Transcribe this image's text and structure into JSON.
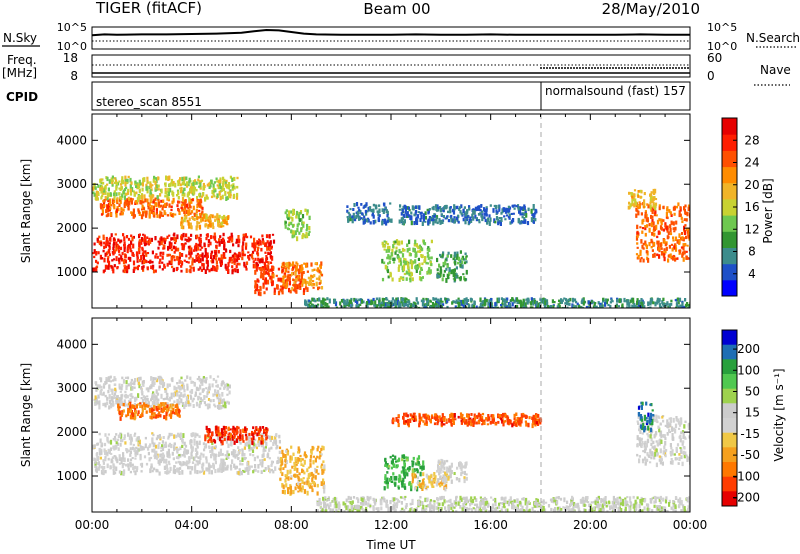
{
  "header": {
    "title": "TIGER (fitACF)",
    "beam": "Beam 00",
    "date": "28/May/2010"
  },
  "noise_panel": {
    "left_label": "N.Sky",
    "right_label": "N.Search",
    "left_ticks": [
      "10^5",
      "10^0"
    ],
    "right_ticks": [
      "10^5",
      "10^0"
    ],
    "sky_profile": [
      [
        0,
        3.2
      ],
      [
        0.5,
        3.4
      ],
      [
        1,
        3.3
      ],
      [
        2,
        3.4
      ],
      [
        3,
        3.4
      ],
      [
        4,
        3.5
      ],
      [
        5,
        3.6
      ],
      [
        6,
        3.8
      ],
      [
        6.5,
        4.2
      ],
      [
        7,
        4.5
      ],
      [
        7.5,
        4.4
      ],
      [
        8,
        4.0
      ],
      [
        8.5,
        3.6
      ],
      [
        9,
        3.4
      ],
      [
        10,
        3.3
      ],
      [
        11,
        3.3
      ],
      [
        12,
        3.3
      ],
      [
        13,
        3.4
      ],
      [
        14,
        3.3
      ],
      [
        15,
        3.3
      ],
      [
        16,
        3.4
      ],
      [
        17,
        3.3
      ],
      [
        18,
        3.3
      ],
      [
        19,
        3.3
      ],
      [
        20,
        3.3
      ],
      [
        21,
        3.3
      ],
      [
        22,
        3.4
      ],
      [
        23,
        3.3
      ],
      [
        24,
        3.3
      ]
    ]
  },
  "freq_panel": {
    "left_label": "Freq.",
    "left_unit": "[MHz]",
    "right_label": "Nave",
    "left_ticks": [
      "18",
      "8"
    ],
    "right_ticks": [
      "60",
      "0"
    ]
  },
  "cpid_panel": {
    "label": "CPID",
    "programs": [
      {
        "name": "stereo_scan",
        "id": "8551",
        "start": 0,
        "end": 18
      },
      {
        "name": "normalsound (fast)",
        "id": "157",
        "start": 18,
        "end": 24
      }
    ]
  },
  "colors": {
    "power": [
      "#0000ff",
      "#1e50c8",
      "#3c8c8c",
      "#329632",
      "#6ec850",
      "#c8d232",
      "#f0b428",
      "#ff8c00",
      "#ff5000",
      "#ff1e00",
      "#e60000"
    ],
    "velocity": [
      "#e60000",
      "#ff3c00",
      "#ff7800",
      "#f5a01e",
      "#f0c846",
      "#d2d2d2",
      "#cccccc",
      "#9ed24e",
      "#50c850",
      "#28a03c",
      "#1e6eb4",
      "#0000d2"
    ]
  },
  "chart_data": [
    {
      "type": "heatmap",
      "name": "power",
      "xlabel": "",
      "ylabel": "Slant Range [km]",
      "xlim": [
        0,
        24
      ],
      "ylim": [
        180,
        4600
      ],
      "yticks": [
        1000,
        2000,
        3000,
        4000
      ],
      "colorbar": {
        "label": "Power [dB]",
        "range": [
          0,
          32
        ],
        "ticks": [
          4,
          8,
          12,
          16,
          20,
          24,
          28
        ]
      },
      "regions": [
        {
          "t0": 0,
          "t1": 7.3,
          "r0": 1050,
          "r1": 1900,
          "value": 28
        },
        {
          "t0": 0.3,
          "t1": 4.5,
          "r0": 2300,
          "r1": 2700,
          "value": 24
        },
        {
          "t0": 0,
          "t1": 5.8,
          "r0": 2700,
          "r1": 3200,
          "value": 16
        },
        {
          "t0": 3.5,
          "t1": 5.5,
          "r0": 2050,
          "r1": 2350,
          "value": 20
        },
        {
          "t0": 6.5,
          "t1": 8.5,
          "r0": 550,
          "r1": 1150,
          "value": 26
        },
        {
          "t0": 7.6,
          "t1": 9.2,
          "r0": 650,
          "r1": 1250,
          "value": 22
        },
        {
          "t0": 7.7,
          "t1": 8.7,
          "r0": 1800,
          "r1": 2450,
          "value": 14
        },
        {
          "t0": 10.2,
          "t1": 12.0,
          "r0": 2150,
          "r1": 2600,
          "value": 6
        },
        {
          "t0": 11.6,
          "t1": 13.6,
          "r0": 850,
          "r1": 1750,
          "value": 14
        },
        {
          "t0": 12.3,
          "t1": 17.8,
          "r0": 2150,
          "r1": 2550,
          "value": 6
        },
        {
          "t0": 13.8,
          "t1": 15.0,
          "r0": 850,
          "r1": 1500,
          "value": 10
        },
        {
          "t0": 8.5,
          "t1": 24,
          "r0": 200,
          "r1": 430,
          "value": 8
        },
        {
          "t0": 21.8,
          "t1": 24,
          "r0": 1300,
          "r1": 2600,
          "value": 24
        },
        {
          "t0": 21.5,
          "t1": 22.6,
          "r0": 2500,
          "r1": 2900,
          "value": 18
        }
      ]
    },
    {
      "type": "heatmap",
      "name": "velocity",
      "xlabel": "Time UT",
      "ylabel": "Slant Range [km]",
      "xlim": [
        0,
        24
      ],
      "ylim": [
        180,
        4600
      ],
      "xticks": [
        "00:00",
        "04:00",
        "08:00",
        "12:00",
        "16:00",
        "20:00",
        "00:00"
      ],
      "yticks": [
        1000,
        2000,
        3000,
        4000
      ],
      "colorbar": {
        "label": "Velocity [m s⁻¹]",
        "range": [
          -250,
          250
        ],
        "ticks": [
          "200",
          "100",
          "50",
          "15",
          "-15",
          "-50",
          "-100",
          "-200"
        ]
      },
      "regions": [
        {
          "t0": 0,
          "t1": 7.5,
          "r0": 1100,
          "r1": 2000,
          "value": 0
        },
        {
          "t0": 0,
          "t1": 5.5,
          "r0": 2600,
          "r1": 3300,
          "value": 0
        },
        {
          "t0": 1.0,
          "t1": 3.5,
          "r0": 2350,
          "r1": 2700,
          "value": -150
        },
        {
          "t0": 4.5,
          "t1": 7.0,
          "r0": 1800,
          "r1": 2150,
          "value": -200
        },
        {
          "t0": 7.5,
          "t1": 9.3,
          "r0": 650,
          "r1": 1700,
          "value": -80
        },
        {
          "t0": 11.7,
          "t1": 13.3,
          "r0": 750,
          "r1": 1500,
          "value": 120
        },
        {
          "t0": 12.8,
          "t1": 14.2,
          "r0": 750,
          "r1": 1100,
          "value": -60
        },
        {
          "t0": 13.8,
          "t1": 15.0,
          "r0": 900,
          "r1": 1400,
          "value": 0
        },
        {
          "t0": 12.0,
          "t1": 18.0,
          "r0": 2200,
          "r1": 2450,
          "value": -170
        },
        {
          "t0": 9.0,
          "t1": 24,
          "r0": 200,
          "r1": 550,
          "value": 20
        },
        {
          "t0": 21.8,
          "t1": 24,
          "r0": 1300,
          "r1": 2400,
          "value": 0
        },
        {
          "t0": 21.9,
          "t1": 22.5,
          "r0": 2100,
          "r1": 2700,
          "value": 180
        }
      ]
    }
  ]
}
